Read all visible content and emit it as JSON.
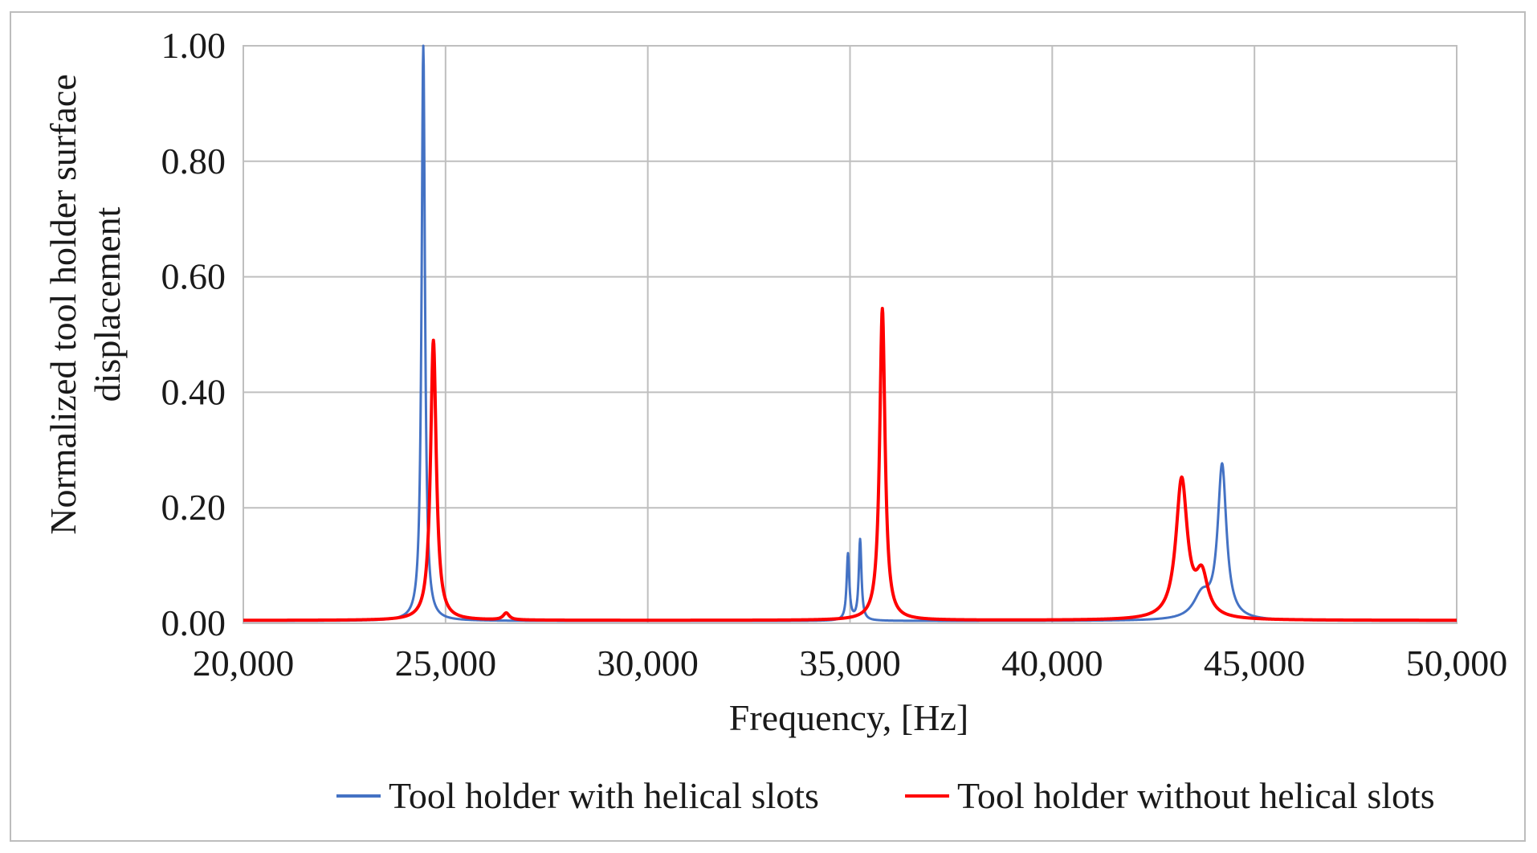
{
  "chart_data": {
    "type": "line",
    "title": "",
    "xlabel": "Frequency, [Hz]",
    "ylabel_lines": [
      "Normalized tool holder surface",
      "displacement"
    ],
    "xlim": [
      20000,
      50000
    ],
    "ylim": [
      0,
      1.0
    ],
    "x_tick_values": [
      20000,
      25000,
      30000,
      35000,
      40000,
      45000,
      50000
    ],
    "x_ticks": [
      "20,000",
      "25,000",
      "30,000",
      "35,000",
      "40,000",
      "45,000",
      "50,000"
    ],
    "y_tick_values": [
      0,
      0.2,
      0.4,
      0.6,
      0.8,
      1.0
    ],
    "y_ticks": [
      "0.00",
      "0.20",
      "0.40",
      "0.60",
      "0.80",
      "1.00"
    ],
    "grid": true,
    "legend_position": "bottom",
    "series": [
      {
        "name": "Tool holder with helical slots",
        "color": "#4472C4",
        "peaks": [
          {
            "f0": 24450,
            "amp": 1.0,
            "gamma": 50
          },
          {
            "f0": 34950,
            "amp": 0.115,
            "gamma": 40
          },
          {
            "f0": 35250,
            "amp": 0.14,
            "gamma": 40
          },
          {
            "f0": 44200,
            "amp": 0.265,
            "gamma": 130
          },
          {
            "f0": 43700,
            "amp": 0.04,
            "gamma": 250
          }
        ],
        "baseline": 0.004
      },
      {
        "name": "Tool holder without helical slots",
        "color": "#FF0000",
        "peaks": [
          {
            "f0": 24700,
            "amp": 0.485,
            "gamma": 85
          },
          {
            "f0": 26500,
            "amp": 0.012,
            "gamma": 90
          },
          {
            "f0": 35800,
            "amp": 0.54,
            "gamma": 80
          },
          {
            "f0": 43200,
            "amp": 0.24,
            "gamma": 170
          },
          {
            "f0": 43700,
            "amp": 0.07,
            "gamma": 180
          }
        ],
        "baseline": 0.005
      }
    ]
  }
}
